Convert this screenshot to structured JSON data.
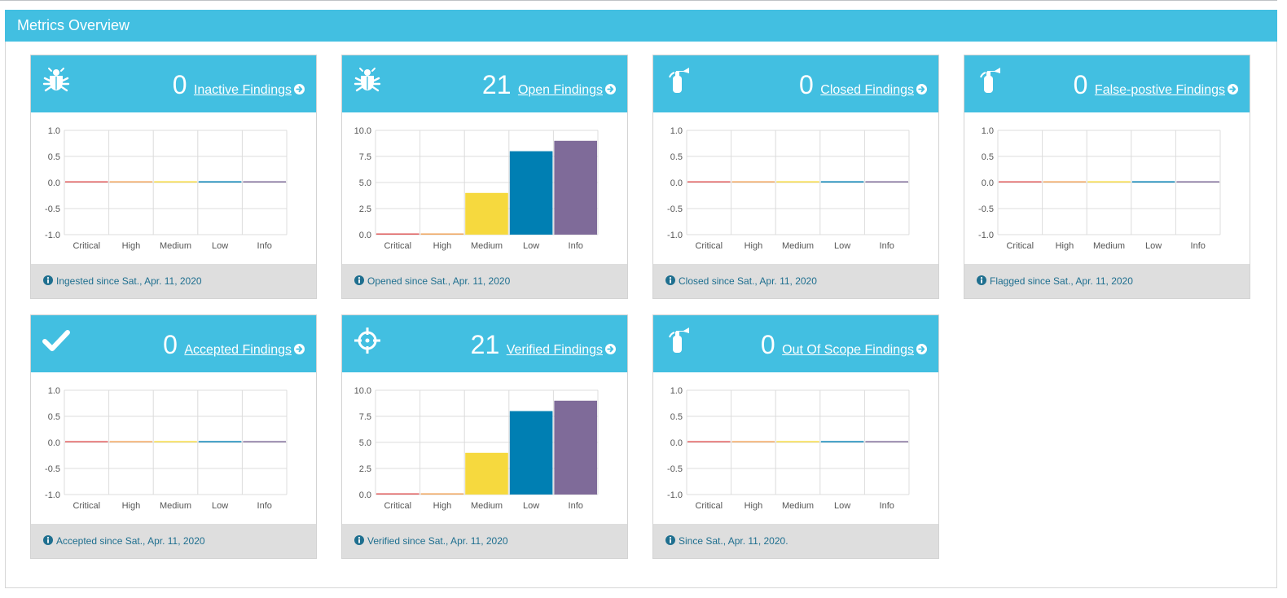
{
  "panel": {
    "title": "Metrics Overview"
  },
  "colors": {
    "header": "#42bfe1",
    "critical": "#e05a5a",
    "high": "#f0a35a",
    "medium": "#f6d93e",
    "low": "#007fb3",
    "info": "#7f6b99"
  },
  "cards": [
    {
      "icon": "bug-icon",
      "count": "0",
      "link": "Inactive Findings",
      "footer": "Ingested since Sat., Apr. 11, 2020"
    },
    {
      "icon": "bug-icon",
      "count": "21",
      "link": "Open Findings",
      "footer": "Opened since Sat., Apr. 11, 2020"
    },
    {
      "icon": "fire-extinguisher-icon",
      "count": "0",
      "link": "Closed Findings",
      "footer": "Closed since Sat., Apr. 11, 2020"
    },
    {
      "icon": "fire-extinguisher-icon",
      "count": "0",
      "link": "False-postive Findings",
      "footer": "Flagged since Sat., Apr. 11, 2020"
    },
    {
      "icon": "check-icon",
      "count": "0",
      "link": "Accepted Findings",
      "footer": "Accepted since Sat., Apr. 11, 2020"
    },
    {
      "icon": "crosshairs-icon",
      "count": "21",
      "link": "Verified Findings",
      "footer": "Verified since Sat., Apr. 11, 2020"
    },
    {
      "icon": "fire-extinguisher-icon",
      "count": "0",
      "link": "Out Of Scope Findings",
      "footer": "Since Sat., Apr. 11, 2020."
    }
  ],
  "chart_data": [
    {
      "type": "bar",
      "categories": [
        "Critical",
        "High",
        "Medium",
        "Low",
        "Info"
      ],
      "values": [
        0,
        0,
        0,
        0,
        0
      ],
      "ylim": [
        -1,
        1
      ],
      "yticks": [
        "1.0",
        "0.5",
        "0.0",
        "-0.5",
        "-1.0"
      ],
      "grid": true
    },
    {
      "type": "bar",
      "categories": [
        "Critical",
        "High",
        "Medium",
        "Low",
        "Info"
      ],
      "values": [
        0,
        0,
        4,
        8,
        9
      ],
      "ylim": [
        0,
        10
      ],
      "yticks": [
        "10.0",
        "7.5",
        "5.0",
        "2.5",
        "0.0"
      ],
      "grid": true
    },
    {
      "type": "bar",
      "categories": [
        "Critical",
        "High",
        "Medium",
        "Low",
        "Info"
      ],
      "values": [
        0,
        0,
        0,
        0,
        0
      ],
      "ylim": [
        -1,
        1
      ],
      "yticks": [
        "1.0",
        "0.5",
        "0.0",
        "-0.5",
        "-1.0"
      ],
      "grid": true
    },
    {
      "type": "bar",
      "categories": [
        "Critical",
        "High",
        "Medium",
        "Low",
        "Info"
      ],
      "values": [
        0,
        0,
        0,
        0,
        0
      ],
      "ylim": [
        -1,
        1
      ],
      "yticks": [
        "1.0",
        "0.5",
        "0.0",
        "-0.5",
        "-1.0"
      ],
      "grid": true
    },
    {
      "type": "bar",
      "categories": [
        "Critical",
        "High",
        "Medium",
        "Low",
        "Info"
      ],
      "values": [
        0,
        0,
        0,
        0,
        0
      ],
      "ylim": [
        -1,
        1
      ],
      "yticks": [
        "1.0",
        "0.5",
        "0.0",
        "-0.5",
        "-1.0"
      ],
      "grid": true
    },
    {
      "type": "bar",
      "categories": [
        "Critical",
        "High",
        "Medium",
        "Low",
        "Info"
      ],
      "values": [
        0,
        0,
        4,
        8,
        9
      ],
      "ylim": [
        0,
        10
      ],
      "yticks": [
        "10.0",
        "7.5",
        "5.0",
        "2.5",
        "0.0"
      ],
      "grid": true
    },
    {
      "type": "bar",
      "categories": [
        "Critical",
        "High",
        "Medium",
        "Low",
        "Info"
      ],
      "values": [
        0,
        0,
        0,
        0,
        0
      ],
      "ylim": [
        -1,
        1
      ],
      "yticks": [
        "1.0",
        "0.5",
        "0.0",
        "-0.5",
        "-1.0"
      ],
      "grid": true
    }
  ]
}
